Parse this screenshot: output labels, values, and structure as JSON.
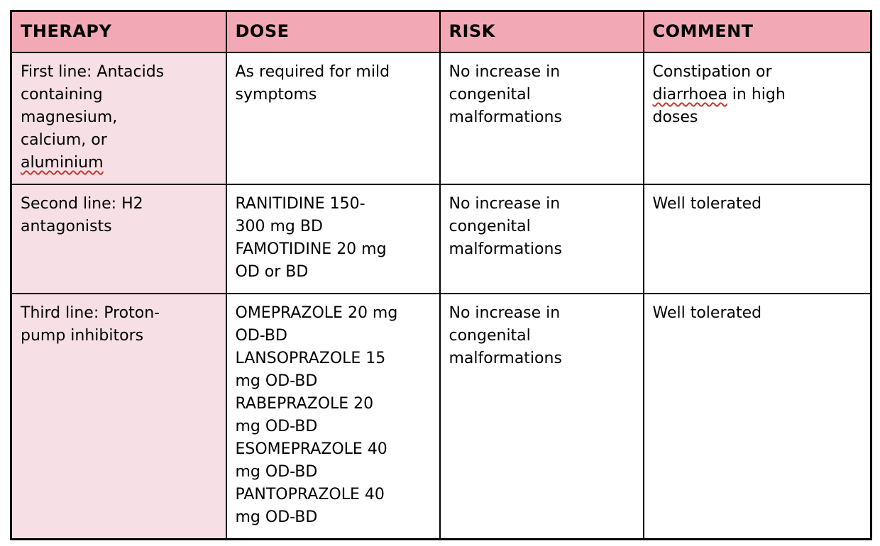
{
  "colors": {
    "header_bg": "#f3a8b5",
    "label_bg": "#f6e0e5",
    "border": "#000000",
    "text": "#000000",
    "squiggle": "#cf3427",
    "page_bg": "#ffffff"
  },
  "table": {
    "headers": [
      {
        "id": "therapy",
        "label": "THERAPY"
      },
      {
        "id": "dose",
        "label": "DOSE"
      },
      {
        "id": "risk",
        "label": "RISK"
      },
      {
        "id": "comment",
        "label": "COMMENT"
      }
    ],
    "rows": [
      {
        "cells": [
          {
            "col": "therapy",
            "lines": [
              [
                "First line: Antacids"
              ],
              [
                "containing"
              ],
              [
                "magnesium,"
              ],
              [
                "calcium, or"
              ],
              [
                {
                  "text": "aluminium",
                  "misspelled": true
                }
              ]
            ]
          },
          {
            "col": "dose",
            "lines": [
              [
                "As required for mild"
              ],
              [
                "symptoms"
              ]
            ]
          },
          {
            "col": "risk",
            "lines": [
              [
                "No increase in"
              ],
              [
                "congenital"
              ],
              [
                "malformations"
              ]
            ]
          },
          {
            "col": "comment",
            "lines": [
              [
                "Constipation or"
              ],
              [
                {
                  "text": "diarrhoea",
                  "misspelled": true
                },
                " in high"
              ],
              [
                "doses"
              ]
            ]
          }
        ]
      },
      {
        "cells": [
          {
            "col": "therapy",
            "lines": [
              [
                "Second line: H2"
              ],
              [
                "antagonists"
              ]
            ]
          },
          {
            "col": "dose",
            "lines": [
              [
                "RANITIDINE 150-"
              ],
              [
                "300 mg BD"
              ],
              [
                "FAMOTIDINE 20 mg"
              ],
              [
                "OD or BD"
              ]
            ]
          },
          {
            "col": "risk",
            "lines": [
              [
                "No increase in"
              ],
              [
                "congenital"
              ],
              [
                "malformations"
              ]
            ]
          },
          {
            "col": "comment",
            "lines": [
              [
                "Well tolerated"
              ]
            ]
          }
        ]
      },
      {
        "cells": [
          {
            "col": "therapy",
            "lines": [
              [
                "Third line: Proton-"
              ],
              [
                "pump inhibitors"
              ]
            ]
          },
          {
            "col": "dose",
            "lines": [
              [
                "OMEPRAZOLE 20 mg"
              ],
              [
                "OD-BD"
              ],
              [
                "LANSOPRAZOLE 15"
              ],
              [
                "mg OD-BD"
              ],
              [
                "RABEPRAZOLE 20"
              ],
              [
                "mg OD-BD"
              ],
              [
                "ESOMEPRAZOLE 40"
              ],
              [
                "mg OD-BD"
              ],
              [
                "PANTOPRAZOLE 40"
              ],
              [
                "mg OD-BD"
              ]
            ]
          },
          {
            "col": "risk",
            "lines": [
              [
                "No increase in"
              ],
              [
                "congenital"
              ],
              [
                "malformations"
              ]
            ]
          },
          {
            "col": "comment",
            "lines": [
              [
                "Well tolerated"
              ]
            ]
          }
        ]
      }
    ]
  }
}
